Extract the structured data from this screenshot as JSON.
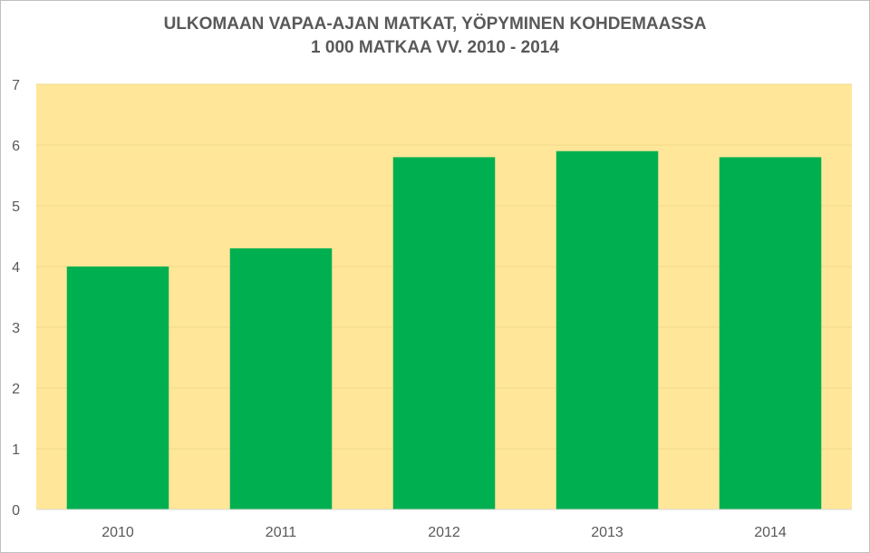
{
  "chart_data": {
    "type": "bar",
    "title_line1": "ULKOMAAN VAPAA-AJAN MATKAT, YÖPYMINEN KOHDEMAASSA",
    "title_line2": "1 000 MATKAA VV. 2010 - 2014",
    "categories": [
      "2010",
      "2011",
      "2012",
      "2013",
      "2014"
    ],
    "values": [
      4.0,
      4.3,
      5.8,
      5.9,
      5.8
    ],
    "xlabel": "",
    "ylabel": "",
    "ylim": [
      0,
      7
    ],
    "yticks": [
      0,
      1,
      2,
      3,
      4,
      5,
      6,
      7
    ],
    "grid": true,
    "legend": "none",
    "colors": {
      "bar": "#00b050",
      "plot_background": "#ffe699",
      "gridline": "#f2d98a",
      "text": "#595959"
    }
  }
}
